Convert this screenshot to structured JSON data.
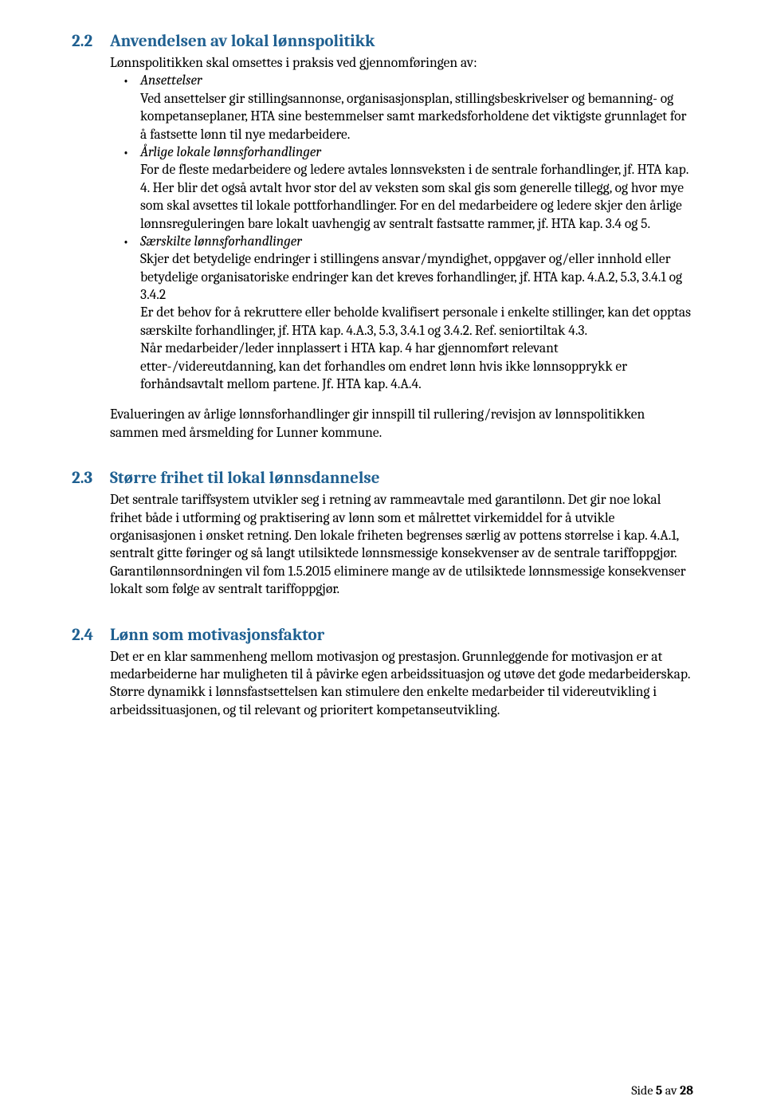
{
  "colors": {
    "heading": "#1f6091",
    "text": "#000000",
    "background": "#ffffff"
  },
  "sec22": {
    "num": "2.2",
    "title": "Anvendelsen av lokal lønnspolitikk",
    "intro": "Lønnspolitikken skal omsettes i praksis ved gjennomføringen av:",
    "bullets": [
      {
        "title": "Ansettelser",
        "body": "Ved ansettelser gir stillingsannonse, organisasjonsplan, stillingsbeskrivelser og bemanning- og kompetanseplaner, HTA sine bestemmelser samt markedsforholdene det viktigste grunnlaget for å fastsette lønn til nye medarbeidere."
      },
      {
        "title": "Årlige lokale lønnsforhandlinger",
        "body": "For de fleste medarbeidere og ledere avtales lønnsveksten i de sentrale forhandlinger, jf. HTA kap. 4. Her blir det også avtalt hvor stor del av veksten som skal gis som generelle tillegg, og hvor mye som skal avsettes til lokale pottforhandlinger. For en del medarbeidere og ledere skjer den årlige lønnsreguleringen bare lokalt uavhengig av sentralt fastsatte rammer, jf. HTA kap. 3.4 og 5."
      },
      {
        "title": "Særskilte lønnsforhandlinger",
        "body1": "Skjer det betydelige endringer i stillingens ansvar/myndighet, oppgaver og/eller innhold eller betydelige organisatoriske endringer kan det kreves forhandlinger, jf. HTA kap. 4.A.2, 5.3, 3.4.1 og 3.4.2",
        "body2": "Er det behov for å rekruttere eller beholde kvalifisert personale i enkelte stillinger, kan det opptas særskilte forhandlinger, jf. HTA kap. 4.A.3, 5.3, 3.4.1 og 3.4.2. Ref. seniortiltak 4.3.",
        "body3": "Når medarbeider/leder innplassert i HTA kap. 4 har gjennomført relevant etter-/videreutdanning, kan det forhandles om endret lønn hvis ikke lønnsopprykk er forhåndsavtalt mellom partene. Jf. HTA kap. 4.A.4."
      }
    ],
    "closing": "Evalueringen av årlige lønnsforhandlinger gir innspill til rullering/revisjon av lønnspolitikken sammen med årsmelding for Lunner kommune."
  },
  "sec23": {
    "num": "2.3",
    "title": "Større frihet til lokal lønnsdannelse",
    "body": "Det sentrale tariffsystem utvikler seg i retning av rammeavtale med garantilønn. Det gir noe lokal frihet både i utforming og praktisering av lønn som et målrettet virkemiddel for å utvikle organisasjonen i ønsket retning. Den lokale friheten begrenses særlig av pottens størrelse i kap. 4.A.1, sentralt gitte føringer og så langt utilsiktede lønnsmessige konsekvenser av de sentrale tariffoppgjør. Garantilønnsordningen vil fom 1.5.2015 eliminere mange av de utilsiktede lønnsmessige konsekvenser lokalt som følge av sentralt tariffoppgjør."
  },
  "sec24": {
    "num": "2.4",
    "title": "Lønn som motivasjonsfaktor",
    "body": "Det er en klar sammenheng mellom motivasjon og prestasjon. Grunnleggende for motivasjon er at medarbeiderne har muligheten til å påvirke egen arbeidssituasjon og utøve det gode medarbeiderskap. Større dynamikk i lønnsfastsettelsen kan stimulere den enkelte medarbeider til videreutvikling i arbeidssituasjonen, og til relevant og prioritert kompetanseutvikling."
  },
  "footer": {
    "prefix": "Side ",
    "page": "5",
    "of": " av ",
    "total": "28"
  }
}
